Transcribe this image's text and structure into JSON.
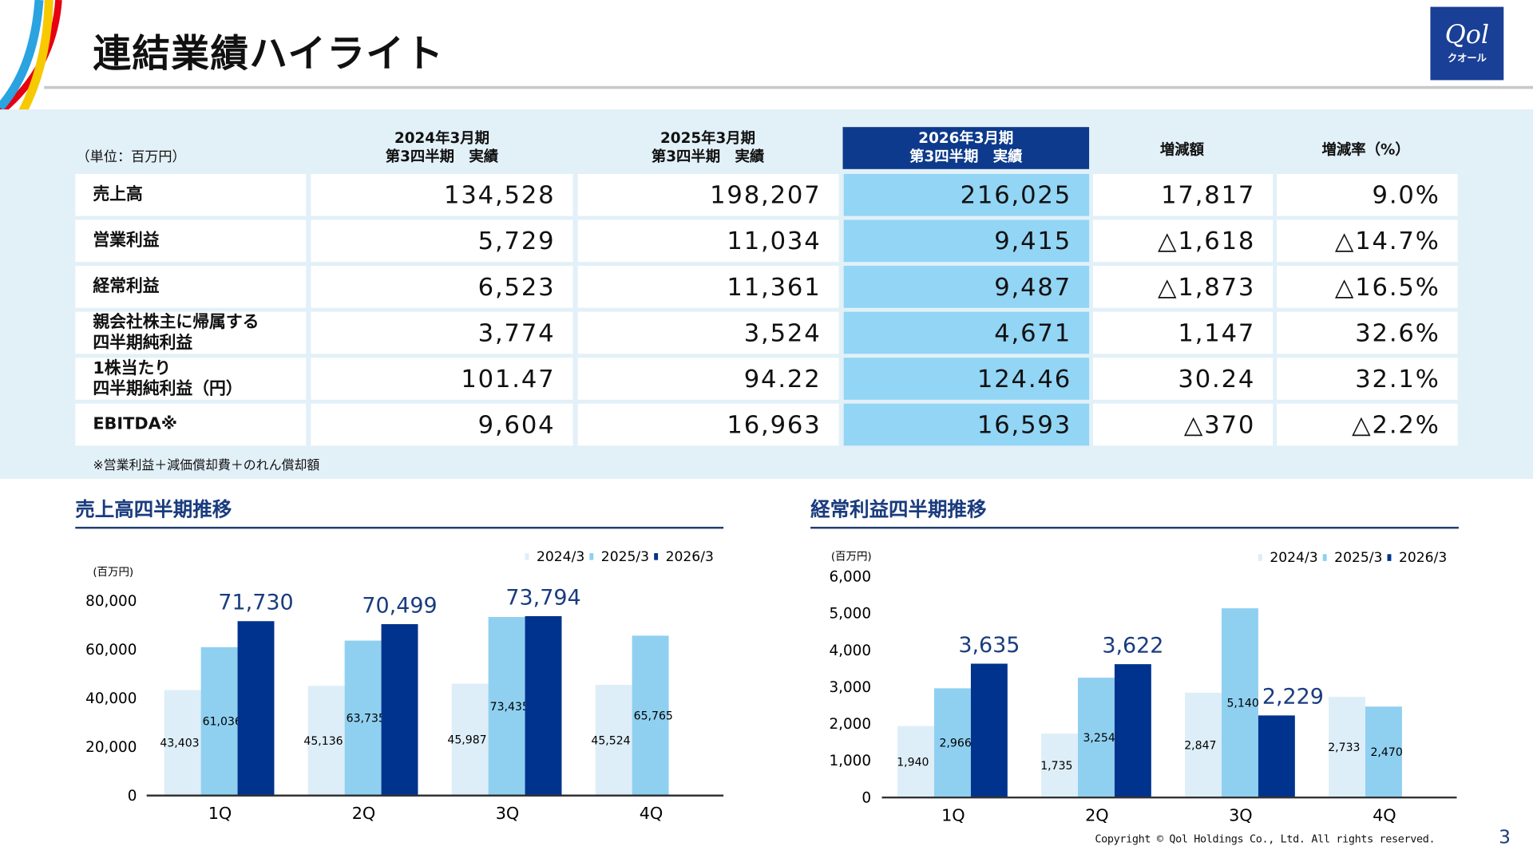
{
  "header": {
    "title": "連結業績ハイライト",
    "logo_text": "Qol",
    "logo_sub": "クオール"
  },
  "table": {
    "unit": "（単位：百万円）",
    "columns": [
      {
        "line1": "2024年3月期",
        "line2": "第3四半期　実績"
      },
      {
        "line1": "2025年3月期",
        "line2": "第3四半期　実績"
      },
      {
        "line1": "2026年3月期",
        "line2": "第3四半期　実績"
      },
      {
        "line1": "増減額",
        "line2": ""
      },
      {
        "line1": "増減率（%）",
        "line2": ""
      }
    ],
    "rows": [
      {
        "label": "売上高",
        "values": [
          "134,528",
          "198,207",
          "216,025",
          "17,817",
          "9.0%"
        ]
      },
      {
        "label": "営業利益",
        "values": [
          "5,729",
          "11,034",
          "9,415",
          "△1,618",
          "△14.7%"
        ]
      },
      {
        "label": "経常利益",
        "values": [
          "6,523",
          "11,361",
          "9,487",
          "△1,873",
          "△16.5%"
        ]
      },
      {
        "label": "親会社株主に帰属する\n四半期純利益",
        "values": [
          "3,774",
          "3,524",
          "4,671",
          "1,147",
          "32.6%"
        ]
      },
      {
        "label": "1株当たり\n四半期純利益（円）",
        "values": [
          "101.47",
          "94.22",
          "124.46",
          "30.24",
          "32.1%"
        ]
      },
      {
        "label": "EBITDA※",
        "values": [
          "9,604",
          "16,963",
          "16,593",
          "△370",
          "△2.2%"
        ]
      }
    ],
    "footnote": "※営業利益＋減価償却費＋のれん償却額"
  },
  "colors": {
    "fy2024": "#ddeef8",
    "fy2025": "#8fd0f0",
    "fy2026": "#00338d",
    "highlight": "#92d5f5",
    "header": "#0d3a8c",
    "accent_text": "#1a3c7e"
  },
  "chart_data": [
    {
      "type": "bar",
      "title": "売上高四半期推移",
      "ylabel": "(百万円)",
      "categories": [
        "1Q",
        "2Q",
        "3Q",
        "4Q"
      ],
      "ylim": [
        0,
        80000
      ],
      "yticks": [
        "0",
        "20,000",
        "40,000",
        "60,000",
        "80,000"
      ],
      "legend": "top-right",
      "series": [
        {
          "name": "2024/3",
          "values": [
            43403,
            45136,
            45987,
            45524
          ],
          "labels": [
            "43,403",
            "45,136",
            "45,987",
            "45,524"
          ]
        },
        {
          "name": "2025/3",
          "values": [
            61036,
            63735,
            73435,
            65765
          ],
          "labels": [
            "61,036",
            "63,735",
            "73,435",
            "65,765"
          ]
        },
        {
          "name": "2026/3",
          "values": [
            71730,
            70499,
            73794,
            null
          ],
          "labels": [
            "71,730",
            "70,499",
            "73,794",
            ""
          ]
        }
      ]
    },
    {
      "type": "bar",
      "title": "経常利益四半期推移",
      "ylabel": "(百万円)",
      "categories": [
        "1Q",
        "2Q",
        "3Q",
        "4Q"
      ],
      "ylim": [
        0,
        6000
      ],
      "yticks": [
        "0",
        "1,000",
        "2,000",
        "3,000",
        "4,000",
        "5,000",
        "6,000"
      ],
      "legend": "top-right",
      "series": [
        {
          "name": "2024/3",
          "values": [
            1940,
            1735,
            2847,
            2733
          ],
          "labels": [
            "1,940",
            "1,735",
            "2,847",
            "2,733"
          ]
        },
        {
          "name": "2025/3",
          "values": [
            2966,
            3254,
            5140,
            2470
          ],
          "labels": [
            "2,966",
            "3,254",
            "5,140",
            "2,470"
          ]
        },
        {
          "name": "2026/3",
          "values": [
            3635,
            3622,
            2229,
            null
          ],
          "labels": [
            "3,635",
            "3,622",
            "2,229",
            ""
          ]
        }
      ]
    }
  ],
  "footer": {
    "copyright": "Copyright © Qol  Holdings Co., Ltd. All rights reserved.",
    "page": "3"
  }
}
